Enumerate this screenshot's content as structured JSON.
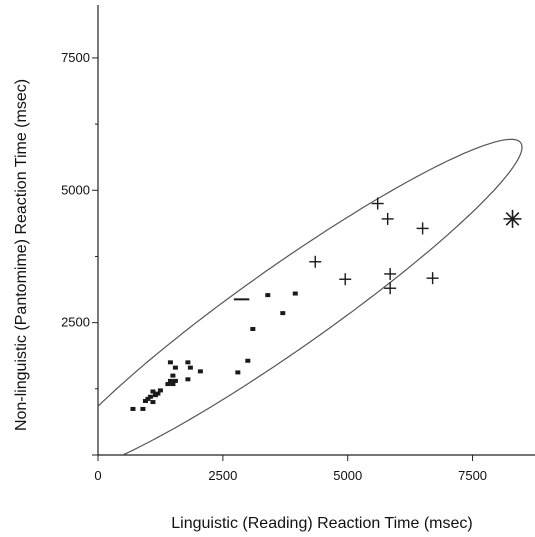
{
  "chart_data": {
    "type": "scatter",
    "title": "",
    "xlabel": "Linguistic (Reading) Reaction Time (msec)",
    "ylabel": "Non-linguistic (Pantomime) Reaction Time (msec)",
    "xlim": [
      0,
      8750
    ],
    "ylim": [
      0,
      8500
    ],
    "xticks": [
      0,
      2500,
      5000,
      7500
    ],
    "yticks": [
      2500,
      5000,
      7500
    ],
    "xtick_labels": [
      "0",
      "2500",
      "5000",
      "7500"
    ],
    "ytick_labels": [
      "2500",
      "5000",
      "7500"
    ],
    "grid": false,
    "series": [
      {
        "marker": "square",
        "points": [
          [
            700,
            870
          ],
          [
            900,
            870
          ],
          [
            950,
            1020
          ],
          [
            1000,
            1060
          ],
          [
            1050,
            1100
          ],
          [
            1100,
            1000
          ],
          [
            1100,
            1200
          ],
          [
            1150,
            1130
          ],
          [
            1200,
            1160
          ],
          [
            1250,
            1220
          ],
          [
            1400,
            1340
          ],
          [
            1450,
            1400
          ],
          [
            1450,
            1750
          ],
          [
            1500,
            1500
          ],
          [
            1500,
            1340
          ],
          [
            1550,
            1400
          ],
          [
            1550,
            1650
          ],
          [
            1800,
            1430
          ],
          [
            1800,
            1750
          ],
          [
            1850,
            1650
          ],
          [
            2050,
            1580
          ],
          [
            2800,
            1560
          ],
          [
            3000,
            1780
          ],
          [
            3100,
            2380
          ],
          [
            3400,
            3020
          ],
          [
            3700,
            2680
          ],
          [
            3950,
            3050
          ]
        ]
      },
      {
        "marker": "dash",
        "points": [
          [
            2800,
            2940
          ],
          [
            2950,
            2940
          ]
        ]
      },
      {
        "marker": "plus",
        "points": [
          [
            4350,
            3650
          ],
          [
            4950,
            3320
          ],
          [
            5600,
            4750
          ],
          [
            5800,
            4460
          ],
          [
            5850,
            3420
          ],
          [
            5850,
            3150
          ],
          [
            6500,
            4280
          ],
          [
            6700,
            3340
          ]
        ]
      },
      {
        "marker": "asterisk",
        "points": [
          [
            8300,
            4460
          ]
        ]
      }
    ],
    "ellipse": {
      "center": [
        3800,
        2800
      ],
      "semi_major": 5600,
      "semi_minor": 800,
      "angle_deg": 33.5
    },
    "colors": {
      "marker": "#1a1a1a",
      "ellipse": "#555555",
      "axis": "#222222"
    }
  }
}
